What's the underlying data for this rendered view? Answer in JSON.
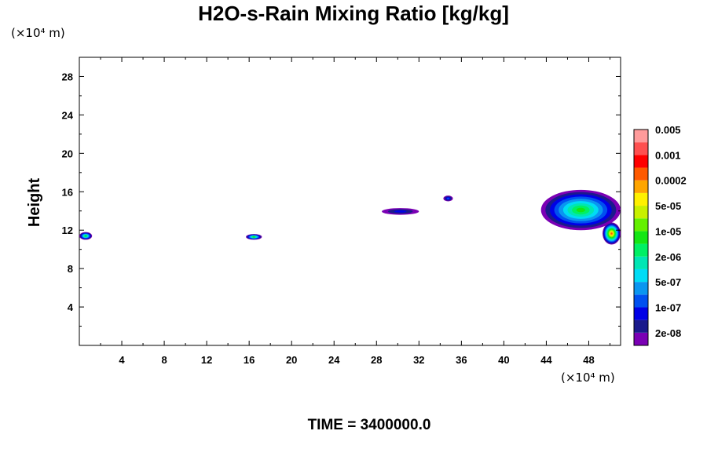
{
  "chart_data": {
    "type": "heatmap",
    "title": "H2O-s-Rain Mixing Ratio [kg/kg]",
    "ylabel": "Height",
    "xlabel": "",
    "x_unit_label": "(×10⁴ m)",
    "y_unit_label": "(×10⁴ m)",
    "xlim": [
      0,
      51
    ],
    "ylim": [
      0,
      30
    ],
    "x_ticks": [
      4,
      8,
      12,
      16,
      20,
      24,
      28,
      32,
      36,
      40,
      44,
      48
    ],
    "y_ticks": [
      4,
      8,
      12,
      16,
      20,
      24,
      28
    ],
    "colorbar": {
      "colors": [
        "#7a00b4",
        "#1a1a8c",
        "#0000e6",
        "#0050f0",
        "#0a96f0",
        "#00dcf5",
        "#00e6b4",
        "#00f064",
        "#14e614",
        "#64f000",
        "#c8f000",
        "#fff000",
        "#ffa500",
        "#ff5a00",
        "#ff0000",
        "#ff5050",
        "#ff9b9b"
      ],
      "labels": [
        "2e-08",
        "1e-07",
        "5e-07",
        "2e-06",
        "1e-05",
        "5e-05",
        "0.0002",
        "0.001",
        "0.005"
      ]
    },
    "regions": [
      {
        "x": [
          0,
          1.2
        ],
        "y": [
          11,
          11.8
        ],
        "peak_level": 8
      },
      {
        "x": [
          15.7,
          17.2
        ],
        "y": [
          11,
          11.6
        ],
        "peak_level": 8
      },
      {
        "x": [
          28.5,
          32
        ],
        "y": [
          13.6,
          14.3
        ],
        "peak_level": 2
      },
      {
        "x": [
          34.3,
          35.2
        ],
        "y": [
          15,
          15.6
        ],
        "peak_level": 3
      },
      {
        "x": [
          43.5,
          51
        ],
        "y": [
          12,
          16.2
        ],
        "peak_level": 8
      },
      {
        "x": [
          49.3,
          51
        ],
        "y": [
          10.5,
          12.8
        ],
        "peak_level": 13
      }
    ]
  },
  "footer": {
    "time_label": "TIME = 3400000.0"
  }
}
